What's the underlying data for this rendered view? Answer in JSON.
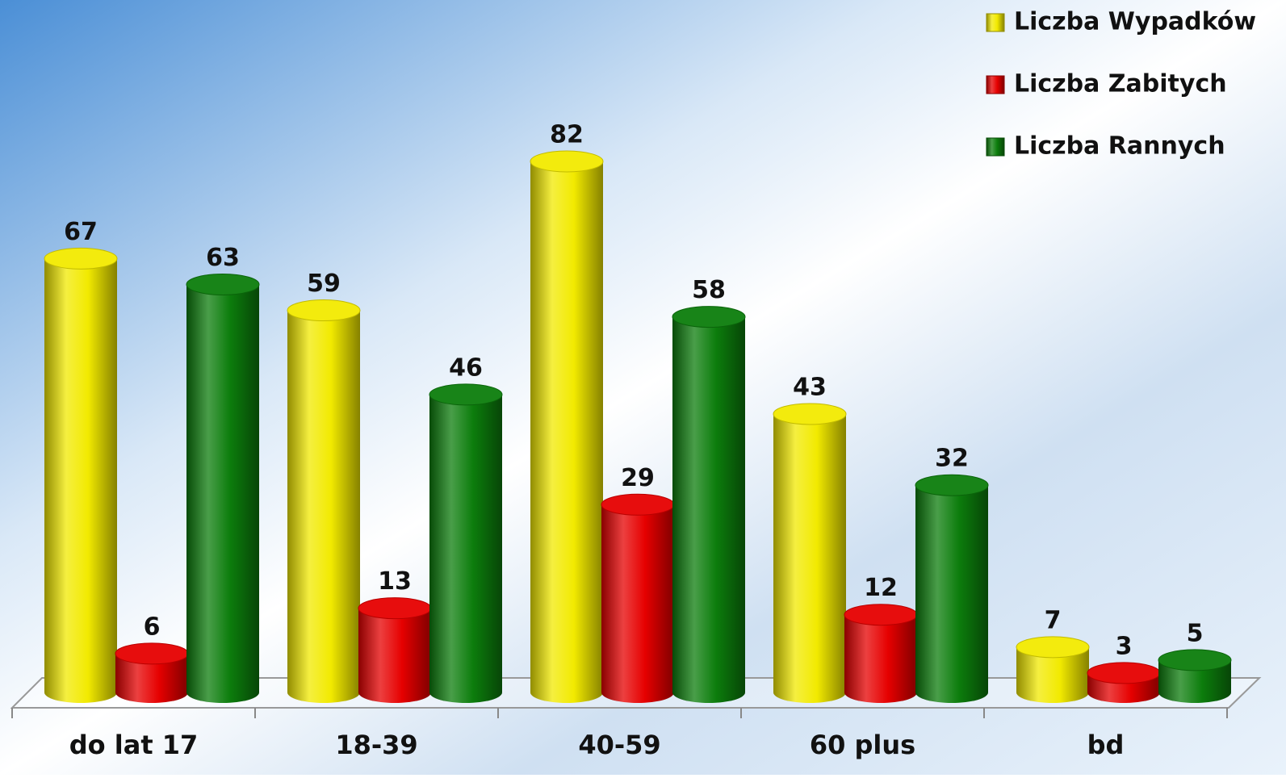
{
  "chart_data": {
    "type": "bar",
    "categories": [
      "do lat 17",
      "18-39",
      "40-59",
      "60 plus",
      "bd"
    ],
    "series": [
      {
        "name": "Liczba Wypadków",
        "color": "#f2ea00",
        "values": [
          67,
          59,
          82,
          43,
          7
        ]
      },
      {
        "name": "Liczba Zabitych",
        "color": "#e60000",
        "values": [
          6,
          13,
          29,
          12,
          3
        ]
      },
      {
        "name": "Liczba Rannych",
        "color": "#0c7d0c",
        "values": [
          63,
          46,
          58,
          32,
          5
        ]
      }
    ]
  }
}
